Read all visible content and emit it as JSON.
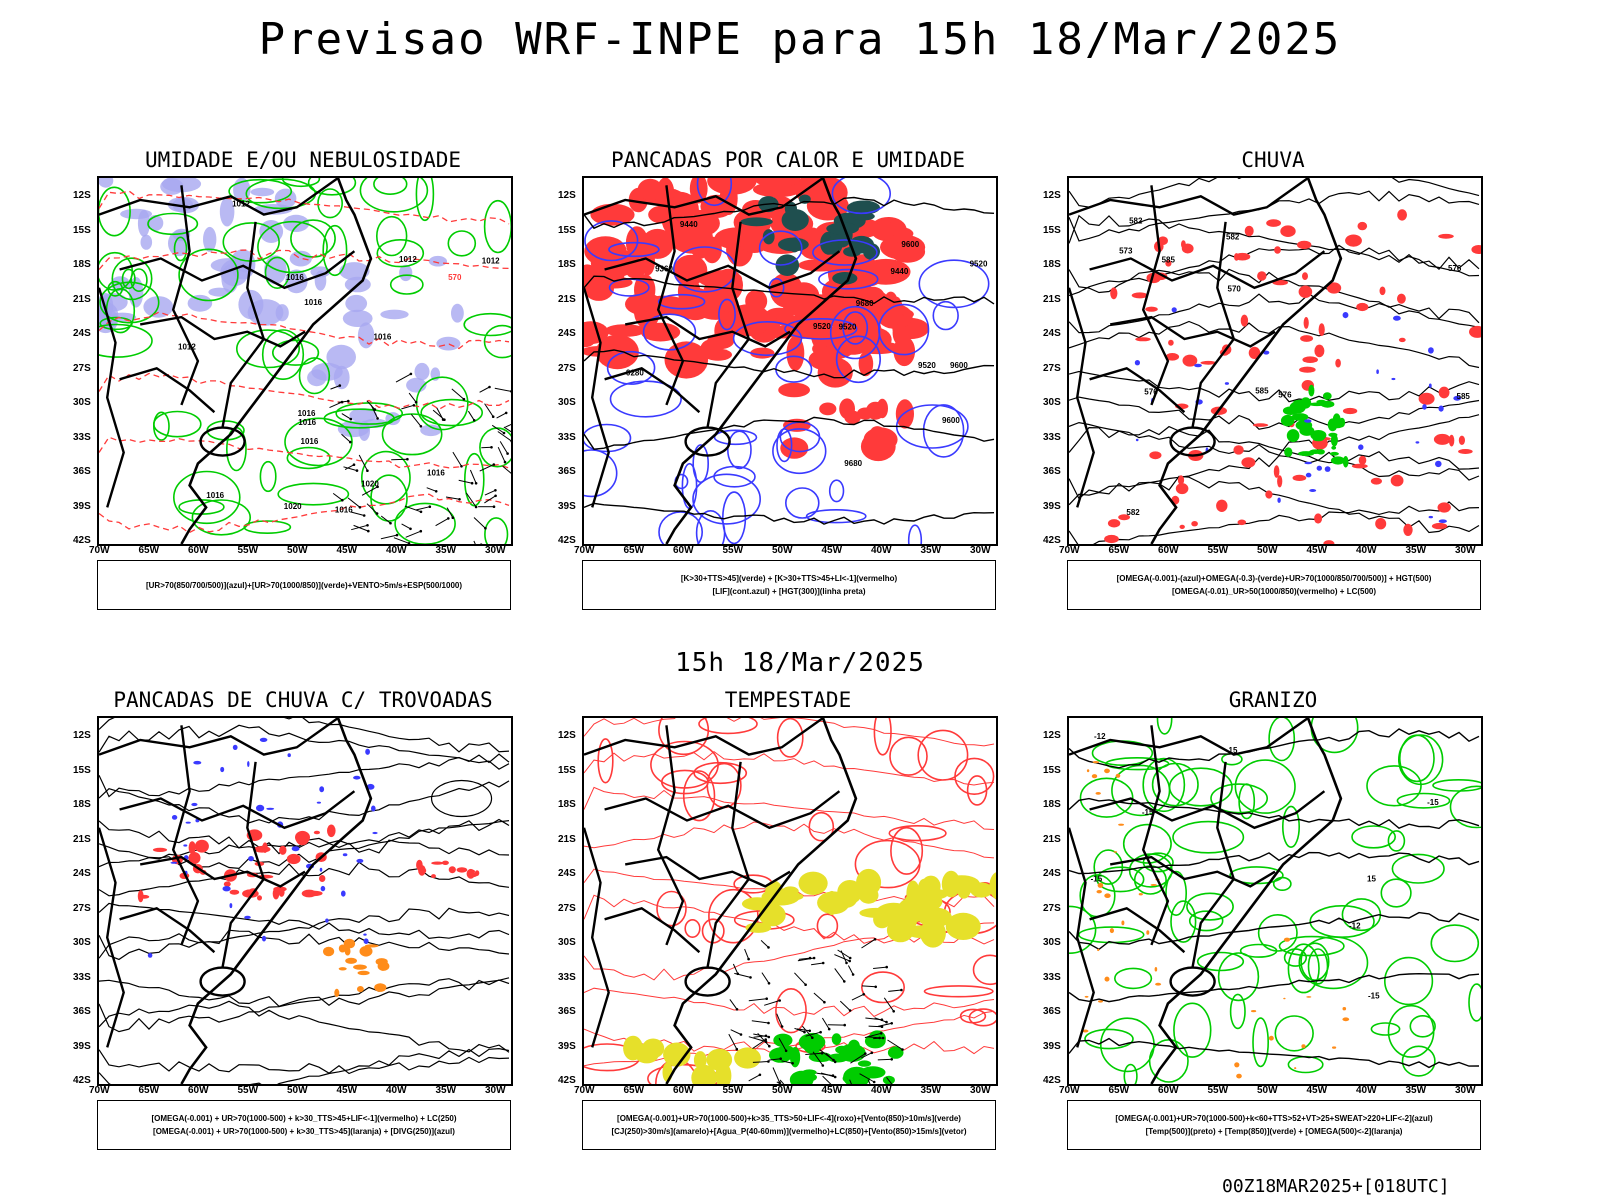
{
  "title": "Previsao WRF-INPE  para 15h 18/Mar/2025",
  "mid_title": "15h 18/Mar/2025",
  "footer": "00Z18MAR2025+[018UTC]",
  "lat_labels": [
    "12S",
    "15S",
    "18S",
    "21S",
    "24S",
    "27S",
    "30S",
    "33S",
    "36S",
    "39S",
    "42S"
  ],
  "lon_labels": [
    "70W",
    "65W",
    "60W",
    "55W",
    "50W",
    "45W",
    "40W",
    "35W",
    "30W"
  ],
  "colors": {
    "green": "#00cc00",
    "blue": "#3a3aff",
    "red": "#ff3a3a",
    "lavender": "#a8a8f0",
    "darkteal": "#1f4f4f",
    "yellow": "#e6e02a",
    "orange": "#ff8c1a"
  },
  "panels": [
    {
      "id": "umidade",
      "title": "UMIDADE E/OU NEBULOSIDADE",
      "legend": [
        "[UR>70(850/700/500)](azul)+[UR>70(1000/850)](verde)+VENTO>5m/s+ESP(500/1000)"
      ],
      "contour_labels": [
        "1012",
        "1012",
        "1016",
        "1012",
        "1016",
        "1012",
        "1016",
        "570",
        "1020",
        "1016",
        "1016",
        "1016",
        "1016",
        "1020",
        "1016",
        "1016"
      ]
    },
    {
      "id": "pancadas-calor",
      "title": "PANCADAS POR CALOR E UMIDADE",
      "legend": [
        "[K>30+TTS>45](verde) + [K>30+TTS>45+LI<-1](vermelho)",
        "[LIF](cont.azul) + [HGT(300)](linha preta)"
      ],
      "contour_labels": [
        "9680",
        "9680",
        "9600",
        "9520",
        "9600",
        "9520",
        "9600",
        "9520",
        "9440",
        "9520",
        "9360",
        "9280",
        "9440"
      ]
    },
    {
      "id": "chuva",
      "title": "CHUVA",
      "legend": [
        "[OMEGA(-0.001)-(azul)+OMEGA(-0.3)-(verde)+UR>70(1000/850/700/500)] + HGT(500)",
        "[OMEGA(-0.01)_UR>50(1000/850)(vermelho) + LC(500)"
      ],
      "contour_labels": [
        "585",
        "585",
        "582",
        "576",
        "570",
        "576",
        "582",
        "573",
        "576",
        "582",
        "585"
      ]
    },
    {
      "id": "pancadas-trovoadas",
      "title": "PANCADAS DE CHUVA C/ TROVOADAS",
      "legend": [
        "[OMEGA(-0.001) + UR>70(1000-500) + k>30_TTS>45+LIF<-1](vermelho) + LC(250)",
        "[OMEGA(-0.001) + UR>70(1000-500) + k>30_TTS>45](laranja) + [DIVG(250)](azul)"
      ],
      "contour_labels": []
    },
    {
      "id": "tempestade",
      "title": "TEMPESTADE",
      "legend": [
        "[OMEGA(-0.001)+UR>70(1000-500)+k>35_TTS>50+LIF<-4](roxo)+[Vento(850)>10m/s](verde)",
        "[CJ(250)>30m/s](amarelo)+[Agua_P(40-60mm)](vermelho)+LC(850)+[Vento(850)>15m/s](vetor)"
      ],
      "contour_labels": []
    },
    {
      "id": "granizo",
      "title": "GRANIZO",
      "legend": [
        "[OMEGA(-0.001)+UR>70(1000-500)+k<60+TTS>52+VT>25+SWEAT>220+LIF<-2](azul)",
        "[Temp(500)](preto) + [Temp(850)](verde) + [OMEGA(500)<-2](laranja)"
      ],
      "contour_labels": [
        "-15",
        "-12",
        "-15",
        "-15",
        "-12",
        "-15",
        "15",
        "15"
      ]
    }
  ]
}
